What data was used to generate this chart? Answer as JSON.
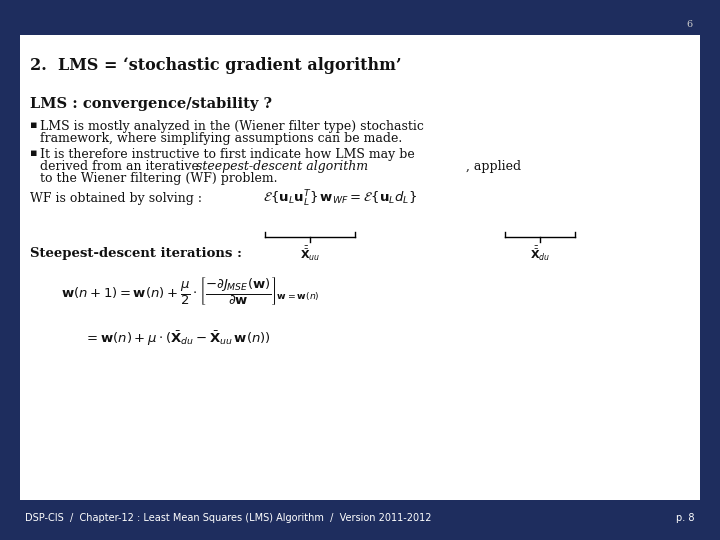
{
  "bg_color": "#ffffff",
  "border_bg": "#1e2d5e",
  "footer_bg": "#1e2d5e",
  "footer_text": "DSP-CIS  /  Chapter-12 : Least Mean Squares (LMS) Algorithm  /  Version 2011-2012",
  "footer_right": "p. 8",
  "page_number": "6",
  "title": "2.  LMS = ‘stochastic gradient algorithm’",
  "section_header": "LMS : convergence/stability ?",
  "para1_line1": "LMS is mostly analyzed in the (Wiener filter type) stochastic",
  "para1_line2": "framework, where simplifying assumptions can be made.",
  "para2_line1": "It is therefore instructive to first indicate how LMS may be",
  "para2_line2": "derived from an iterative steepest-descent algorithm, applied",
  "para2_line3": "to the Wiener filtering (WF) problem.",
  "wf_label": "WF is obtained by solving :",
  "sd_label": "Steepest-descent iterations :"
}
